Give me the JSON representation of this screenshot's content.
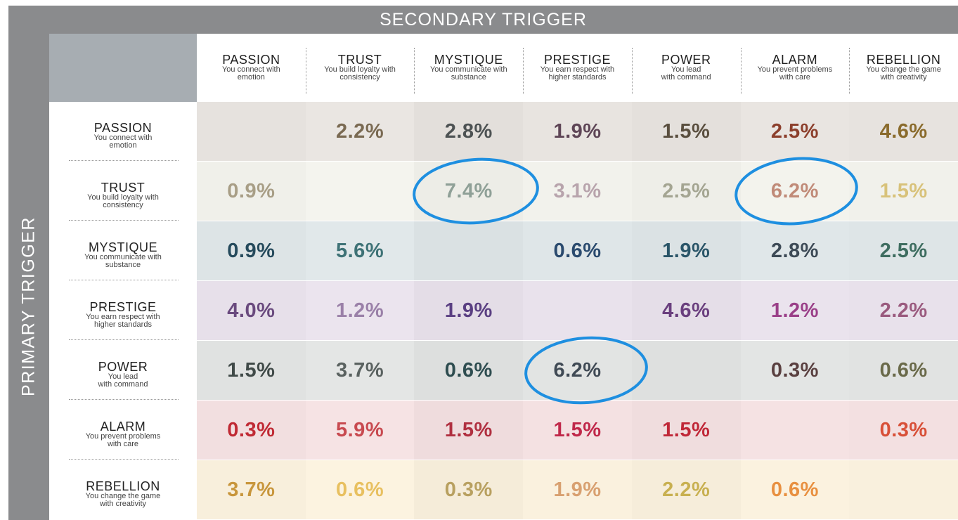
{
  "header": {
    "title": "SECONDARY TRIGGER",
    "side_title": "PRIMARY TRIGGER"
  },
  "columns": [
    {
      "name": "PASSION",
      "desc": [
        "You connect with",
        "emotion"
      ]
    },
    {
      "name": "TRUST",
      "desc": [
        "You build loyalty with",
        "consistency"
      ]
    },
    {
      "name": "MYSTIQUE",
      "desc": [
        "You communicate with",
        "substance"
      ]
    },
    {
      "name": "PRESTIGE",
      "desc": [
        "You earn respect with",
        "higher standards"
      ]
    },
    {
      "name": "POWER",
      "desc": [
        "You lead",
        "with command"
      ]
    },
    {
      "name": "ALARM",
      "desc": [
        "You prevent problems",
        "with care"
      ]
    },
    {
      "name": "REBELLION",
      "desc": [
        "You change the game",
        "with creativity"
      ]
    }
  ],
  "rows": [
    {
      "name": "PASSION",
      "desc": [
        "You connect with",
        "emotion"
      ],
      "cells": [
        null,
        "2.2%",
        "2.8%",
        "1.9%",
        "1.5%",
        "2.5%",
        "4.6%"
      ]
    },
    {
      "name": "TRUST",
      "desc": [
        "You build loyalty with",
        "consistency"
      ],
      "cells": [
        "0.9%",
        null,
        "7.4%",
        "3.1%",
        "2.5%",
        "6.2%",
        "1.5%"
      ]
    },
    {
      "name": "MYSTIQUE",
      "desc": [
        "You communicate with",
        "substance"
      ],
      "cells": [
        "0.9%",
        "5.6%",
        null,
        "0.6%",
        "1.9%",
        "2.8%",
        "2.5%"
      ]
    },
    {
      "name": "PRESTIGE",
      "desc": [
        "You earn respect with",
        "higher standards"
      ],
      "cells": [
        "4.0%",
        "1.2%",
        "1.9%",
        null,
        "4.6%",
        "1.2%",
        "2.2%"
      ]
    },
    {
      "name": "POWER",
      "desc": [
        "You lead",
        "with command"
      ],
      "cells": [
        "1.5%",
        "3.7%",
        "0.6%",
        "6.2%",
        null,
        "0.3%",
        "0.6%"
      ]
    },
    {
      "name": "ALARM",
      "desc": [
        "You prevent problems",
        "with care"
      ],
      "cells": [
        "0.3%",
        "5.9%",
        "1.5%",
        "1.5%",
        "1.5%",
        null,
        "0.3%"
      ]
    },
    {
      "name": "REBELLION",
      "desc": [
        "You change the game",
        "with creativity"
      ],
      "cells": [
        "3.7%",
        "0.6%",
        "0.3%",
        "1.9%",
        "2.2%",
        "0.6%",
        null
      ]
    }
  ]
}
